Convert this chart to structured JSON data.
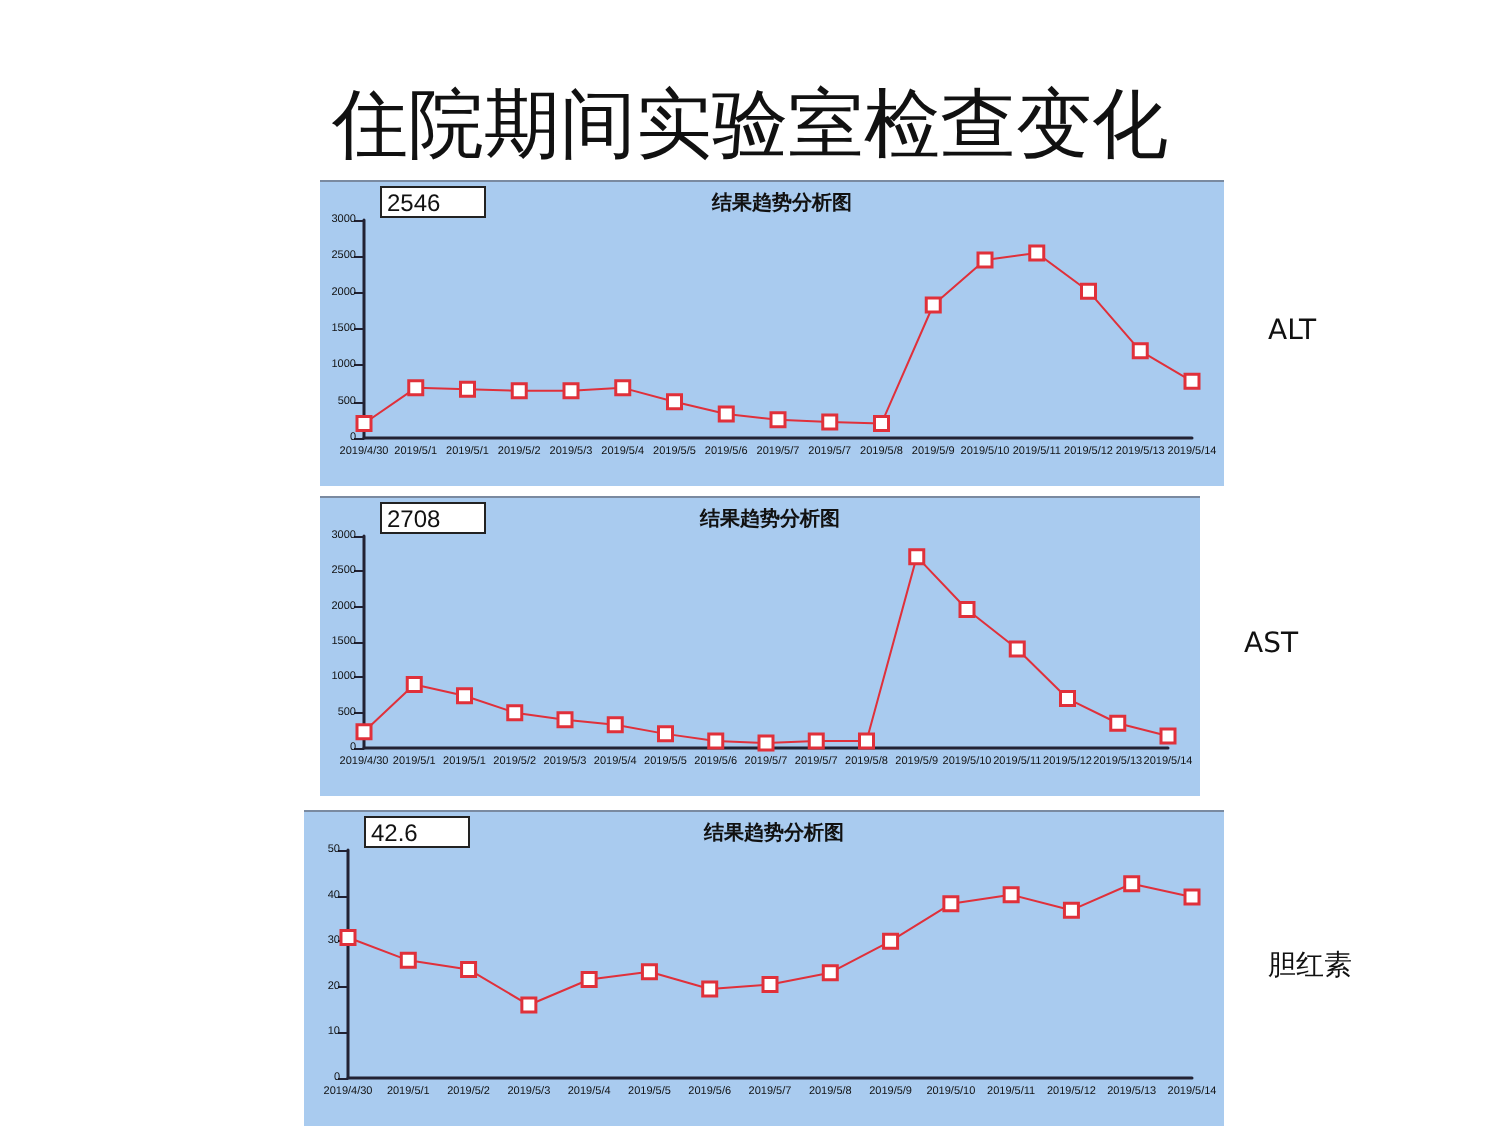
{
  "chart_data": [
    {
      "type": "other",
      "title": "住院期间实验室检查变化"
    },
    {
      "type": "line",
      "title": "结果趋势分析图",
      "annotations": [
        "2546",
        "ALT"
      ],
      "categories": [
        "2019/4/30",
        "2019/5/1",
        "2019/5/1",
        "2019/5/2",
        "2019/5/3",
        "2019/5/4",
        "2019/5/5",
        "2019/5/6",
        "2019/5/7",
        "2019/5/7",
        "2019/5/8",
        "2019/5/9",
        "2019/5/10",
        "2019/5/11",
        "2019/5/12",
        "2019/5/13",
        "2019/5/14"
      ],
      "series": [
        {
          "color": "#e0303a",
          "values": [
            200,
            690,
            670,
            650,
            650,
            690,
            500,
            330,
            250,
            220,
            200,
            1830,
            2450,
            2546,
            2020,
            1200,
            780
          ]
        }
      ],
      "ylim": [
        0,
        3000
      ],
      "yticks": [
        0,
        500,
        1000,
        1500,
        2000,
        2500,
        3000
      ],
      "marker": "square"
    },
    {
      "type": "line",
      "title": "结果趋势分析图",
      "annotations": [
        "2708",
        "AST"
      ],
      "categories": [
        "2019/4/30",
        "2019/5/1",
        "2019/5/1",
        "2019/5/2",
        "2019/5/3",
        "2019/5/4",
        "2019/5/5",
        "2019/5/6",
        "2019/5/7",
        "2019/5/7",
        "2019/5/8",
        "2019/5/9",
        "2019/5/10",
        "2019/5/11",
        "2019/5/12",
        "2019/5/13",
        "2019/5/14"
      ],
      "series": [
        {
          "color": "#e0303a",
          "values": [
            230,
            900,
            740,
            500,
            400,
            330,
            200,
            100,
            70,
            100,
            100,
            2708,
            1960,
            1400,
            700,
            350,
            170
          ]
        }
      ],
      "ylim": [
        0,
        3000
      ],
      "yticks": [
        0,
        500,
        1000,
        1500,
        2000,
        2500,
        3000
      ],
      "marker": "square"
    },
    {
      "type": "line",
      "title": "结果趋势分析图",
      "annotations": [
        "42.6",
        "胆红素"
      ],
      "categories": [
        "2019/4/30",
        "2019/5/1",
        "2019/5/2",
        "2019/5/3",
        "2019/5/4",
        "2019/5/5",
        "2019/5/6",
        "2019/5/7",
        "2019/5/8",
        "2019/5/9",
        "2019/5/10",
        "2019/5/11",
        "2019/5/12",
        "2019/5/13",
        "2019/5/14"
      ],
      "series": [
        {
          "color": "#e0303a",
          "values": [
            30.8,
            25.8,
            23.8,
            16,
            21.6,
            23.3,
            19.5,
            20.5,
            23.1,
            30,
            38.2,
            40.2,
            36.8,
            42.6,
            39.7
          ]
        }
      ],
      "ylim": [
        0,
        50
      ],
      "yticks": [
        0,
        10,
        20,
        30,
        40,
        50
      ],
      "marker": "square"
    }
  ]
}
